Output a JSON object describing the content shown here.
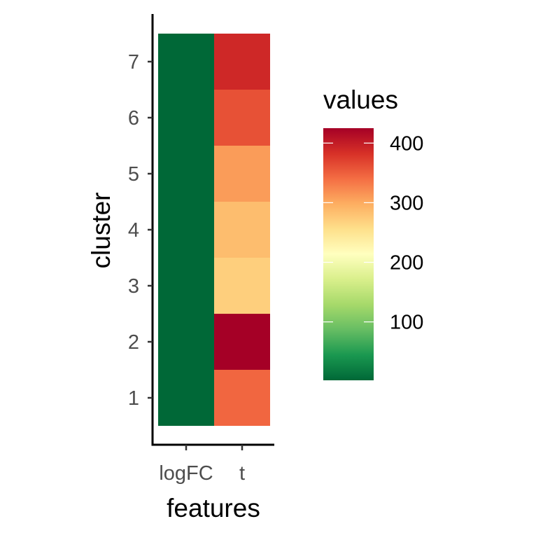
{
  "chart_data": {
    "type": "heatmap",
    "title": "",
    "xlabel": "features",
    "ylabel": "cluster",
    "x_categories": [
      "logFC",
      "t"
    ],
    "y_categories": [
      "1",
      "2",
      "3",
      "4",
      "5",
      "6",
      "7"
    ],
    "cells": [
      {
        "x": "logFC",
        "y": "1",
        "value": 2
      },
      {
        "x": "logFC",
        "y": "2",
        "value": 2
      },
      {
        "x": "logFC",
        "y": "3",
        "value": 2
      },
      {
        "x": "logFC",
        "y": "4",
        "value": 2
      },
      {
        "x": "logFC",
        "y": "5",
        "value": 2
      },
      {
        "x": "logFC",
        "y": "6",
        "value": 2
      },
      {
        "x": "logFC",
        "y": "7",
        "value": 2
      },
      {
        "x": "t",
        "y": "1",
        "value": 345
      },
      {
        "x": "t",
        "y": "2",
        "value": 425
      },
      {
        "x": "t",
        "y": "3",
        "value": 270
      },
      {
        "x": "t",
        "y": "4",
        "value": 285
      },
      {
        "x": "t",
        "y": "5",
        "value": 310
      },
      {
        "x": "t",
        "y": "6",
        "value": 360
      },
      {
        "x": "t",
        "y": "7",
        "value": 390
      }
    ],
    "legend": {
      "title": "values",
      "ticks": [
        100,
        200,
        300,
        400
      ],
      "range": [
        2,
        425
      ],
      "palette": [
        "#006837",
        "#1A9850",
        "#66BD63",
        "#A6D96A",
        "#D9EF8B",
        "#FFFFBF",
        "#FEE08B",
        "#FDAE61",
        "#F46D43",
        "#D73027",
        "#A50026"
      ],
      "position": "right"
    },
    "grid": false
  }
}
